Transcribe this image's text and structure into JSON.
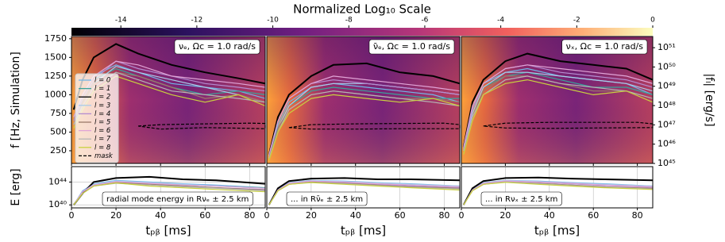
{
  "colorbar": {
    "title": "Normalized Log₁₀ Scale",
    "xlim": [
      -15.3,
      0
    ],
    "xticks": [
      -14,
      -12,
      -10,
      -8,
      -6,
      -4,
      -2,
      0
    ]
  },
  "chart_data": [
    {
      "type": "line",
      "title": "νₑ, Ωc = 1.0 rad/s",
      "y_label": "f [Hz, Simulation]",
      "x": [
        1,
        5,
        10,
        20,
        30,
        45,
        60,
        75,
        87
      ],
      "xlim": [
        0,
        87
      ],
      "xticks": [
        0,
        20,
        40,
        60,
        80
      ],
      "ylim": [
        80,
        1780
      ],
      "yticks": [
        250,
        500,
        750,
        1000,
        1250,
        1500,
        1750
      ],
      "series": [
        {
          "name": "l = 0",
          "color": "#72b6e6",
          "values": [
            700,
            1000,
            1250,
            1400,
            1300,
            1150,
            1100,
            1050,
            950
          ]
        },
        {
          "name": "l = 1",
          "color": "#3aa39a",
          "values": [
            650,
            950,
            1200,
            1350,
            1250,
            1100,
            1000,
            1050,
            1000
          ]
        },
        {
          "name": "l = 2",
          "color": "#000000",
          "values": [
            800,
            1200,
            1500,
            1680,
            1550,
            1400,
            1300,
            1220,
            1150
          ]
        },
        {
          "name": "l = 3",
          "color": "#a9cbe9",
          "values": [
            600,
            900,
            1150,
            1380,
            1300,
            1200,
            1100,
            1000,
            900
          ]
        },
        {
          "name": "l = 4",
          "color": "#b48cd0",
          "values": [
            650,
            950,
            1200,
            1450,
            1350,
            1250,
            1150,
            1100,
            1050
          ]
        },
        {
          "name": "l = 5",
          "color": "#9c7b6a",
          "values": [
            600,
            900,
            1150,
            1300,
            1250,
            1100,
            950,
            1000,
            900
          ]
        },
        {
          "name": "l = 6",
          "color": "#e0a3d6",
          "values": [
            700,
            1000,
            1250,
            1450,
            1400,
            1250,
            1200,
            1150,
            1100
          ]
        },
        {
          "name": "l = 7",
          "color": "#b5b5b5",
          "values": [
            600,
            850,
            1100,
            1300,
            1200,
            1050,
            1000,
            950,
            900
          ]
        },
        {
          "name": "l = 8",
          "color": "#c9d13f",
          "values": [
            550,
            800,
            1050,
            1250,
            1150,
            1000,
            900,
            1000,
            850
          ]
        }
      ],
      "mask": {
        "name": "mask",
        "x": [
          30,
          40,
          60,
          80,
          87,
          87,
          80,
          60,
          40,
          30
        ],
        "values": [
          580,
          600,
          610,
          620,
          615,
          545,
          550,
          560,
          540,
          580
        ]
      }
    },
    {
      "type": "line",
      "title": "ν̄ₑ, Ωc = 1.0 rad/s",
      "x": [
        1,
        5,
        10,
        20,
        30,
        45,
        60,
        75,
        87
      ],
      "xlim": [
        0,
        87
      ],
      "xticks": [
        0,
        20,
        40,
        60,
        80
      ],
      "ylim": [
        80,
        1780
      ],
      "series": [
        {
          "color": "#72b6e6",
          "values": [
            150,
            600,
            900,
            1100,
            1150,
            1100,
            1050,
            1000,
            900
          ]
        },
        {
          "color": "#3aa39a",
          "values": [
            150,
            550,
            850,
            1050,
            1100,
            1050,
            1000,
            950,
            950
          ]
        },
        {
          "color": "#000000",
          "values": [
            200,
            700,
            1000,
            1250,
            1400,
            1420,
            1300,
            1250,
            1150
          ]
        },
        {
          "color": "#a9cbe9",
          "values": [
            150,
            550,
            850,
            1100,
            1150,
            1150,
            1100,
            1050,
            1000
          ]
        },
        {
          "color": "#b48cd0",
          "values": [
            180,
            650,
            950,
            1150,
            1200,
            1150,
            1100,
            1050,
            1000
          ]
        },
        {
          "color": "#9c7b6a",
          "values": [
            150,
            550,
            800,
            1000,
            1050,
            1000,
            950,
            950,
            900
          ]
        },
        {
          "color": "#e0a3d6",
          "values": [
            200,
            650,
            950,
            1150,
            1250,
            1200,
            1150,
            1100,
            1050
          ]
        },
        {
          "color": "#b5b5b5",
          "values": [
            150,
            500,
            800,
            1000,
            1050,
            1000,
            950,
            900,
            850
          ]
        },
        {
          "color": "#c9d13f",
          "values": [
            120,
            500,
            750,
            950,
            1000,
            950,
            900,
            950,
            850
          ]
        }
      ],
      "mask": {
        "x": [
          10,
          20,
          40,
          60,
          80,
          87,
          87,
          60,
          40,
          20,
          10
        ],
        "values": [
          560,
          600,
          610,
          615,
          620,
          600,
          545,
          545,
          540,
          540,
          560
        ]
      }
    },
    {
      "type": "line",
      "title": "νₓ, Ωc = 1.0 rad/s",
      "y2_label": "|fₗ| [erg/s]",
      "x": [
        1,
        5,
        10,
        20,
        30,
        45,
        60,
        75,
        87
      ],
      "xlim": [
        0,
        87
      ],
      "xticks": [
        0,
        20,
        40,
        60,
        80
      ],
      "ylim": [
        80,
        1780
      ],
      "y2lim": [
        1e+45,
        3.8e+51
      ],
      "y2log": true,
      "y2ticks": [
        {
          "value": 1e+45,
          "label": "10⁴⁵"
        },
        {
          "value": 1e+46,
          "label": "10⁴⁶"
        },
        {
          "value": 1e+47,
          "label": "10⁴⁷"
        },
        {
          "value": 1e+48,
          "label": "10⁴⁸"
        },
        {
          "value": 1e+49,
          "label": "10⁴⁹"
        },
        {
          "value": 1e+50,
          "label": "10⁵⁰"
        },
        {
          "value": 1e+51,
          "label": "10⁵¹"
        }
      ],
      "series": [
        {
          "color": "#72b6e6",
          "values": [
            250,
            800,
            1150,
            1300,
            1350,
            1250,
            1200,
            1150,
            1000
          ]
        },
        {
          "color": "#3aa39a",
          "values": [
            250,
            750,
            1100,
            1250,
            1300,
            1200,
            1100,
            1100,
            1000
          ]
        },
        {
          "color": "#000000",
          "values": [
            300,
            900,
            1200,
            1450,
            1550,
            1450,
            1400,
            1350,
            1200
          ]
        },
        {
          "color": "#a9cbe9",
          "values": [
            250,
            750,
            1100,
            1300,
            1300,
            1250,
            1200,
            1150,
            1050
          ]
        },
        {
          "color": "#b48cd0",
          "values": [
            280,
            800,
            1150,
            1350,
            1400,
            1300,
            1250,
            1200,
            1100
          ]
        },
        {
          "color": "#9c7b6a",
          "values": [
            250,
            700,
            1050,
            1250,
            1250,
            1150,
            1050,
            1050,
            950
          ]
        },
        {
          "color": "#e0a3d6",
          "values": [
            300,
            850,
            1150,
            1350,
            1400,
            1350,
            1300,
            1250,
            1150
          ]
        },
        {
          "color": "#b5b5b5",
          "values": [
            250,
            700,
            1000,
            1200,
            1250,
            1150,
            1100,
            1050,
            950
          ]
        },
        {
          "color": "#c9d13f",
          "values": [
            200,
            650,
            1000,
            1150,
            1200,
            1100,
            1000,
            1050,
            900
          ]
        }
      ],
      "mask": {
        "x": [
          10,
          20,
          40,
          60,
          80,
          87,
          87,
          60,
          40,
          20,
          10
        ],
        "values": [
          580,
          620,
          630,
          630,
          630,
          610,
          560,
          555,
          550,
          555,
          580
        ]
      }
    },
    {
      "type": "line",
      "title": "radial mode energy in Rνₑ ± 2.5 km",
      "x_label": "tₚᵦ [ms]",
      "y_label": "E [erg]",
      "x": [
        1,
        5,
        10,
        20,
        35,
        50,
        65,
        87
      ],
      "xlim": [
        0,
        87
      ],
      "xticks": [
        0,
        20,
        40,
        60,
        80
      ],
      "grid": true,
      "ylim": [
        3e+39,
        5e+46
      ],
      "ylog": true,
      "yticks": [
        {
          "value": 1e+40,
          "label": "10⁴⁰"
        },
        {
          "value": 1e+44,
          "label": "10⁴⁴"
        }
      ],
      "series": [
        {
          "color": "#72b6e6",
          "values": [
            1e+40,
            3e+42,
            5e+43,
            2e+44,
            1e+44,
            5e+43,
            3e+43,
            1e+43
          ]
        },
        {
          "color": "#3aa39a",
          "values": [
            1e+40,
            2e+42,
            3e+43,
            1e+44,
            6e+43,
            3e+43,
            2e+43,
            1e+43
          ]
        },
        {
          "color": "#000000",
          "values": [
            1e+40,
            1e+42,
            1e+44,
            5e+44,
            8e+44,
            3e+44,
            2e+44,
            5e+43
          ]
        },
        {
          "color": "#a9cbe9",
          "values": [
            1e+40,
            2e+42,
            4e+43,
            1.5e+44,
            8e+43,
            4e+43,
            2e+43,
            8e+42
          ]
        },
        {
          "color": "#b48cd0",
          "values": [
            1e+40,
            2e+42,
            3e+43,
            1e+44,
            5e+43,
            2e+43,
            1e+43,
            5e+42
          ]
        },
        {
          "color": "#9c7b6a",
          "values": [
            1e+40,
            1e+42,
            2e+43,
            8e+43,
            4e+43,
            2e+43,
            1e+43,
            4e+42
          ]
        },
        {
          "color": "#e0a3d6",
          "values": [
            1e+40,
            2e+42,
            3e+43,
            1.2e+44,
            6e+43,
            3e+43,
            2e+43,
            8e+42
          ]
        },
        {
          "color": "#b5b5b5",
          "values": [
            1e+40,
            1e+42,
            2e+43,
            6e+43,
            3e+43,
            1.5e+43,
            8e+42,
            3e+42
          ]
        },
        {
          "color": "#c9d13f",
          "values": [
            1e+40,
            1e+42,
            2e+43,
            7e+43,
            2e+43,
            1e+43,
            5e+42,
            2e+42
          ]
        }
      ]
    },
    {
      "type": "line",
      "title": "... in Rν̄ₑ ± 2.5 km",
      "x_label": "tₚᵦ [ms]",
      "x": [
        1,
        5,
        10,
        20,
        35,
        50,
        65,
        87
      ],
      "xlim": [
        0,
        87
      ],
      "xticks": [
        0,
        20,
        40,
        60,
        80
      ],
      "grid": true,
      "ylim": [
        3e+39,
        5e+46
      ],
      "ylog": true,
      "series": [
        {
          "color": "#72b6e6",
          "values": [
            1e+40,
            5e+42,
            8e+43,
            2e+44,
            1.5e+44,
            8e+43,
            5e+43,
            2e+43
          ]
        },
        {
          "color": "#3aa39a",
          "values": [
            1e+40,
            4e+42,
            6e+43,
            1.5e+44,
            1e+44,
            6e+43,
            3e+43,
            1.5e+43
          ]
        },
        {
          "color": "#000000",
          "values": [
            1e+40,
            8e+42,
            1.5e+44,
            4e+44,
            5e+44,
            3e+44,
            3e+44,
            2e+44
          ]
        },
        {
          "color": "#a9cbe9",
          "values": [
            1e+40,
            4e+42,
            7e+43,
            1.8e+44,
            1.2e+44,
            7e+43,
            4e+43,
            2e+43
          ]
        },
        {
          "color": "#b48cd0",
          "values": [
            1e+40,
            4e+42,
            6e+43,
            1.5e+44,
            8e+43,
            4e+43,
            2e+43,
            1e+43
          ]
        },
        {
          "color": "#9c7b6a",
          "values": [
            1e+40,
            3e+42,
            4e+43,
            1e+44,
            6e+43,
            3e+43,
            1.5e+43,
            8e+42
          ]
        },
        {
          "color": "#e0a3d6",
          "values": [
            1e+40,
            4e+42,
            6e+43,
            1.5e+44,
            1e+44,
            5e+43,
            3e+43,
            1.5e+43
          ]
        },
        {
          "color": "#b5b5b5",
          "values": [
            1e+40,
            3e+42,
            4e+43,
            9e+43,
            5e+43,
            2.5e+43,
            1.2e+43,
            6e+42
          ]
        },
        {
          "color": "#c9d13f",
          "values": [
            1e+40,
            3e+42,
            4e+43,
            8e+43,
            4e+43,
            2e+43,
            1e+43,
            4e+42
          ]
        }
      ]
    },
    {
      "type": "line",
      "title": "... in Rνₓ ± 2.5 km",
      "x_label": "tₚᵦ [ms]",
      "x": [
        1,
        5,
        10,
        20,
        35,
        50,
        65,
        87
      ],
      "xlim": [
        0,
        87
      ],
      "xticks": [
        0,
        20,
        40,
        60,
        80
      ],
      "grid": true,
      "ylim": [
        3e+39,
        5e+46
      ],
      "ylog": true,
      "series": [
        {
          "color": "#72b6e6",
          "values": [
            1e+40,
            5e+42,
            8e+43,
            2e+44,
            1.5e+44,
            8e+43,
            5e+43,
            2e+43
          ]
        },
        {
          "color": "#3aa39a",
          "values": [
            1e+40,
            4e+42,
            6e+43,
            1.5e+44,
            1e+44,
            5e+43,
            3e+43,
            1.5e+43
          ]
        },
        {
          "color": "#000000",
          "values": [
            1e+40,
            8e+42,
            1.5e+44,
            5e+44,
            6e+44,
            4e+44,
            3e+44,
            2e+44
          ]
        },
        {
          "color": "#a9cbe9",
          "values": [
            1e+40,
            4e+42,
            7e+43,
            1.8e+44,
            1.2e+44,
            6e+43,
            4e+43,
            2e+43
          ]
        },
        {
          "color": "#b48cd0",
          "values": [
            1e+40,
            4e+42,
            6e+43,
            1.5e+44,
            9e+43,
            5e+43,
            2.5e+43,
            1.2e+43
          ]
        },
        {
          "color": "#9c7b6a",
          "values": [
            1e+40,
            3e+42,
            4e+43,
            1e+44,
            6e+43,
            3e+43,
            1.5e+43,
            8e+42
          ]
        },
        {
          "color": "#e0a3d6",
          "values": [
            1e+40,
            4e+42,
            6e+43,
            1.6e+44,
            1e+44,
            6e+43,
            3e+43,
            1.5e+43
          ]
        },
        {
          "color": "#b5b5b5",
          "values": [
            1e+40,
            3e+42,
            4e+43,
            1e+44,
            5e+43,
            2.5e+43,
            1.2e+43,
            6e+42
          ]
        },
        {
          "color": "#c9d13f",
          "values": [
            1e+40,
            3e+42,
            4e+43,
            9e+43,
            4e+43,
            2e+43,
            1e+43,
            5e+42
          ]
        }
      ]
    }
  ]
}
